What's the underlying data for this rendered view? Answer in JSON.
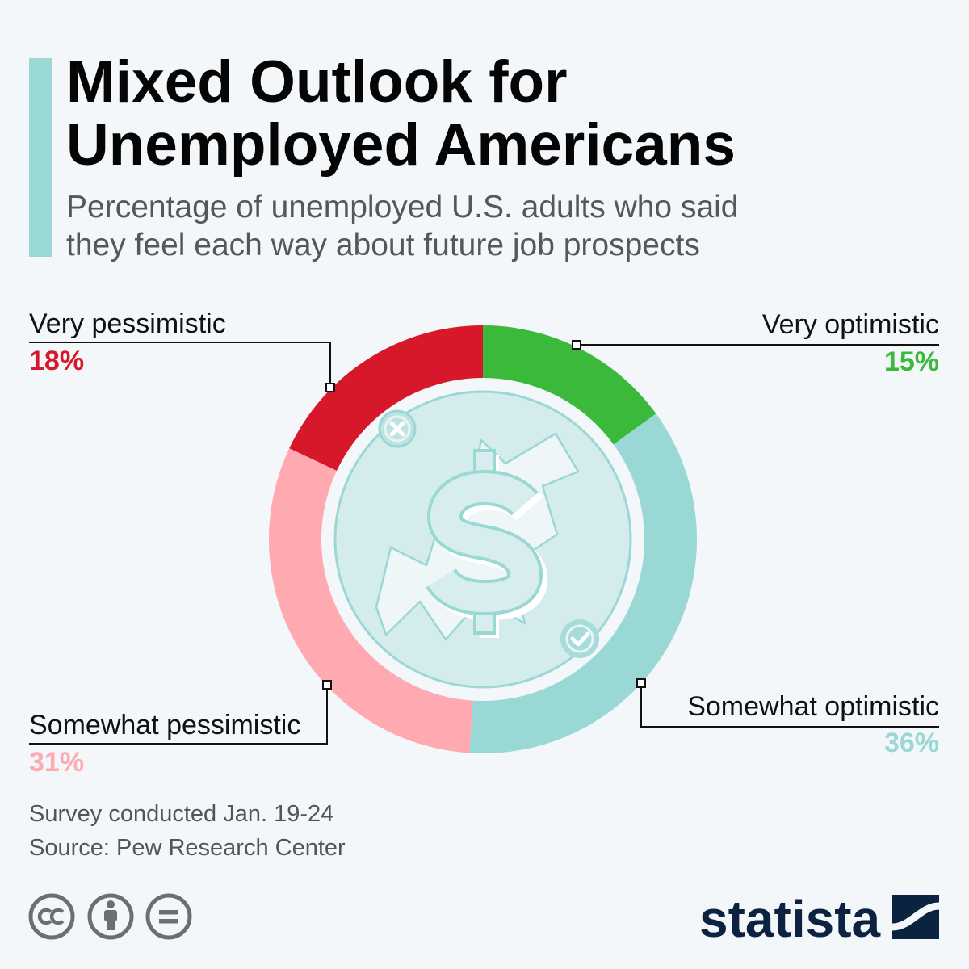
{
  "page": {
    "background": "#f4f7fa",
    "accent_bar_color": "#9ad8d5"
  },
  "chart_data": {
    "type": "pie",
    "donut": true,
    "title": [
      "Mixed Outlook for",
      "Unemployed Americans"
    ],
    "subtitle": [
      "Percentage of unemployed U.S. adults who said",
      "they feel each way about future job prospects"
    ],
    "categories": [
      "Very optimistic",
      "Somewhat optimistic",
      "Somewhat pessimistic",
      "Very pessimistic"
    ],
    "values": [
      15,
      36,
      31,
      18
    ],
    "value_labels": [
      "15%",
      "36%",
      "31%",
      "18%"
    ],
    "colors": [
      "#3bb93b",
      "#9ad8d5",
      "#ffa9b1",
      "#d7182a"
    ]
  },
  "footer": {
    "note": "Survey conducted Jan. 19-24",
    "source": "Source: Pew Research Center"
  },
  "license_icons": [
    "cc-icon",
    "attribution-icon",
    "no-derivatives-icon"
  ],
  "illustration_icons": [
    "x-circle-icon",
    "dollar-sign-icon",
    "check-circle-icon"
  ],
  "brand": {
    "name": "statista",
    "color": "#0b2340",
    "logo_icon": "statista-logo-icon"
  }
}
